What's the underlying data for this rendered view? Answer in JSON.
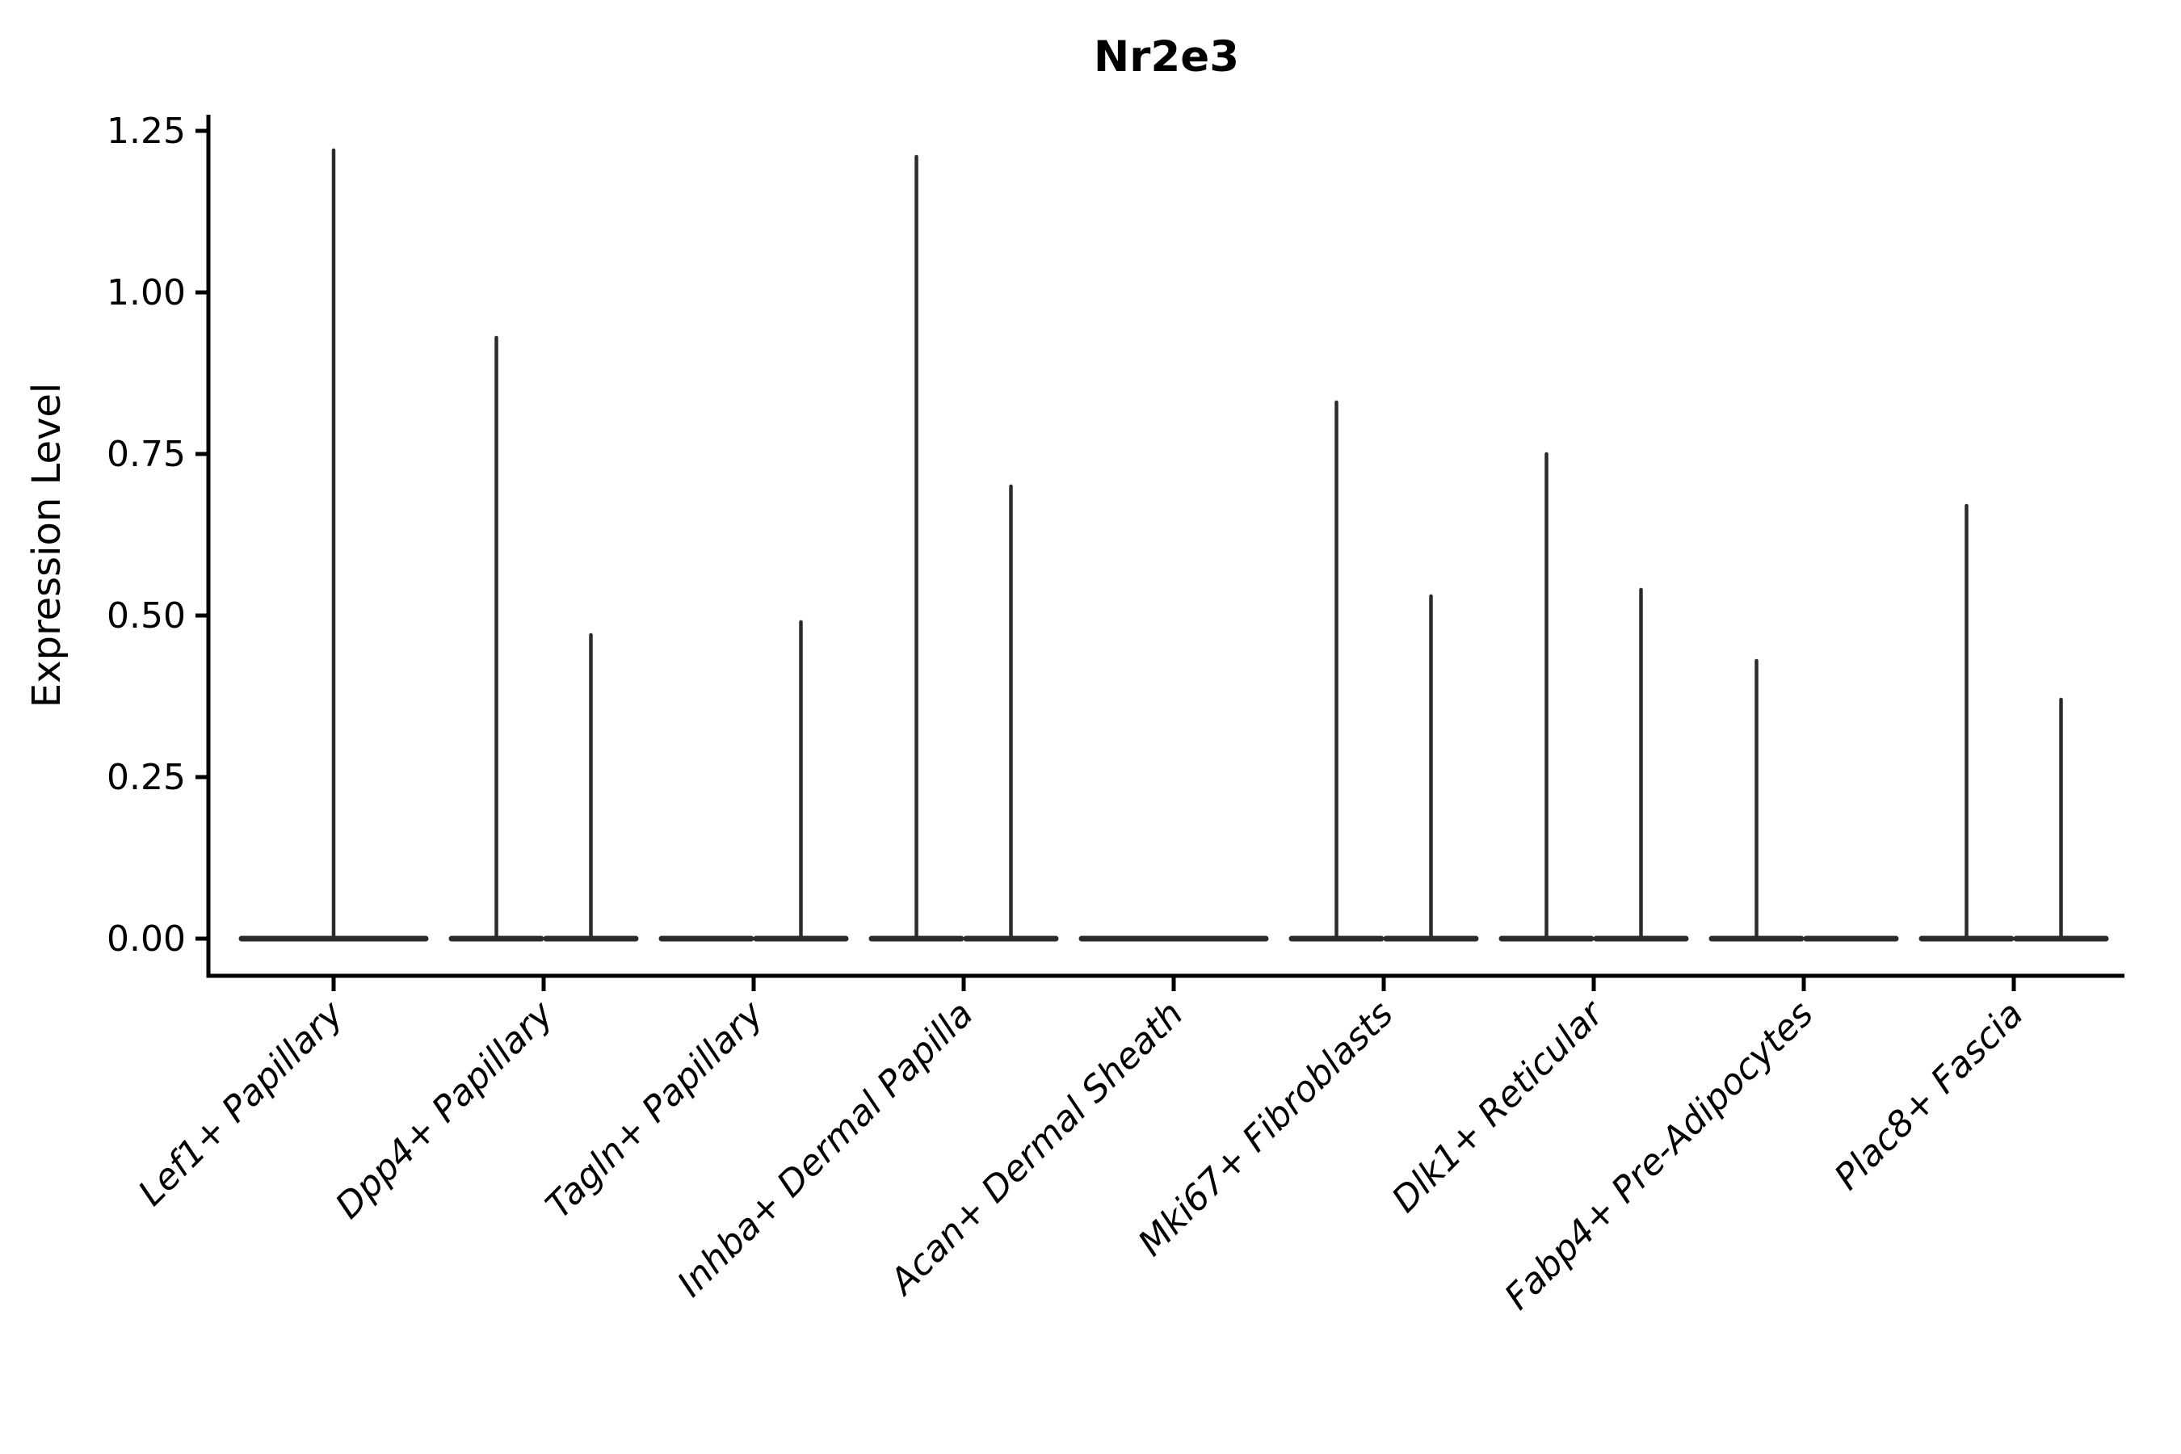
{
  "figure": {
    "background": "#ffffff"
  },
  "chart_data": {
    "type": "violin",
    "title": "Nr2e3",
    "ylabel": "Expression Level",
    "xlabel": "",
    "ylim": [
      -0.06,
      1.28
    ],
    "yticks": [
      "0.00",
      "0.25",
      "0.50",
      "0.75",
      "1.00",
      "1.25"
    ],
    "grid": false,
    "legend": null,
    "x_tick_label_rotation_deg": 45,
    "x_tick_label_style": "italic",
    "categories": [
      {
        "label": "Lef1+ Papillary",
        "violins": [
          {
            "slot": "center",
            "max": 1.22
          }
        ]
      },
      {
        "label": "Dpp4+ Papillary",
        "violins": [
          {
            "slot": "left",
            "max": 0.93
          },
          {
            "slot": "right",
            "max": 0.47
          }
        ]
      },
      {
        "label": "Tagln+ Papillary",
        "violins": [
          {
            "slot": "left",
            "max": 0
          },
          {
            "slot": "right",
            "max": 0.49
          }
        ]
      },
      {
        "label": "Inhba+ Dermal Papilla",
        "violins": [
          {
            "slot": "left",
            "max": 1.21
          },
          {
            "slot": "right",
            "max": 0.7
          }
        ]
      },
      {
        "label": "Acan+ Dermal Sheath",
        "violins": [
          {
            "slot": "center",
            "max": 0
          }
        ]
      },
      {
        "label": "Mki67+ Fibroblasts",
        "violins": [
          {
            "slot": "left",
            "max": 0.83
          },
          {
            "slot": "right",
            "max": 0.53
          }
        ]
      },
      {
        "label": "Dlk1+ Reticular",
        "violins": [
          {
            "slot": "left",
            "max": 0.75
          },
          {
            "slot": "right",
            "max": 0.54
          }
        ]
      },
      {
        "label": "Fabp4+ Pre-Adipocytes",
        "violins": [
          {
            "slot": "left",
            "max": 0.43
          },
          {
            "slot": "right",
            "max": 0
          }
        ]
      },
      {
        "label": "Plac8+ Fascia",
        "violins": [
          {
            "slot": "left",
            "max": 0.67
          },
          {
            "slot": "right",
            "max": 0.37
          }
        ]
      }
    ],
    "colors": {
      "violin": "#2b2b2b",
      "axis": "#000000",
      "text": "#000000"
    }
  }
}
